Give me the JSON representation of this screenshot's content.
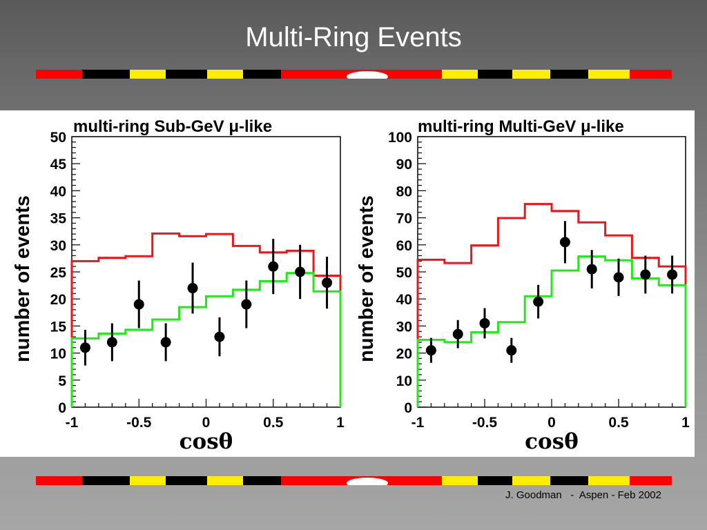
{
  "slide": {
    "title": "Multi-Ring Events",
    "footer": "J. Goodman   -  Aspen - Feb 2002"
  },
  "colors": {
    "red_histogram": "#e8171d",
    "green_histogram": "#22e81a",
    "data_points": "#000000",
    "stripe_red": "#ff0000",
    "stripe_yellow": "#ffee00",
    "stripe_black": "#000000",
    "stripe_white": "#ffffff"
  },
  "chart_data": [
    {
      "type": "line",
      "title": "multi-ring Sub-GeV μ-like",
      "xlabel": "cosθ",
      "ylabel": "number of events",
      "xlim": [
        -1,
        1
      ],
      "ylim": [
        0,
        50
      ],
      "x_ticks": [
        -1,
        -0.5,
        0,
        0.5,
        1
      ],
      "x_tick_labels": [
        "-1",
        "-0.5",
        "0",
        "0.5",
        "1"
      ],
      "y_ticks": [
        0,
        5,
        10,
        15,
        20,
        25,
        30,
        35,
        40,
        45,
        50
      ],
      "y_tick_labels": [
        "0",
        "5",
        "10",
        "15",
        "20",
        "25",
        "30",
        "35",
        "40",
        "45",
        "50"
      ],
      "bin_edges": [
        -1,
        -0.8,
        -0.6,
        -0.4,
        -0.2,
        0,
        0.2,
        0.4,
        0.6,
        0.8,
        1
      ],
      "series": [
        {
          "style": "step",
          "color": "#e8171d",
          "values": [
            27,
            27.6,
            27.9,
            32.1,
            31.6,
            32,
            29.8,
            28.6,
            28.9,
            24.3
          ]
        },
        {
          "style": "step",
          "color": "#22e81a",
          "values": [
            12.7,
            13.6,
            14.3,
            16.2,
            18.5,
            20.5,
            21.7,
            23.3,
            24.8,
            21.4
          ]
        },
        {
          "style": "points",
          "color": "#000000",
          "x": [
            -0.9,
            -0.7,
            -0.5,
            -0.3,
            -0.1,
            0.1,
            0.3,
            0.5,
            0.7,
            0.9
          ],
          "y": [
            11,
            12,
            19,
            12,
            22,
            13,
            19,
            26,
            25,
            23
          ],
          "err": [
            3.3,
            3.5,
            4.4,
            3.5,
            4.7,
            3.6,
            4.4,
            5.1,
            5,
            4.8
          ]
        }
      ]
    },
    {
      "type": "line",
      "title": "multi-ring Multi-GeV μ-like",
      "xlabel": "cosθ",
      "ylabel": "number of events",
      "xlim": [
        -1,
        1
      ],
      "ylim": [
        0,
        100
      ],
      "x_ticks": [
        -1,
        -0.5,
        0,
        0.5,
        1
      ],
      "x_tick_labels": [
        "-1",
        "-0.5",
        "0",
        "0.5",
        "1"
      ],
      "y_ticks": [
        0,
        10,
        20,
        30,
        40,
        50,
        60,
        70,
        80,
        90,
        100
      ],
      "y_tick_labels": [
        "0",
        "10",
        "20",
        "30",
        "40",
        "50",
        "60",
        "70",
        "80",
        "90",
        "100"
      ],
      "bin_edges": [
        -1,
        -0.8,
        -0.6,
        -0.4,
        -0.2,
        0,
        0.2,
        0.4,
        0.6,
        0.8,
        1
      ],
      "series": [
        {
          "style": "step",
          "color": "#e8171d",
          "values": [
            54.5,
            53.3,
            59.8,
            69.9,
            75.1,
            72.5,
            68.3,
            63.5,
            55.2,
            52
          ]
        },
        {
          "style": "step",
          "color": "#22e81a",
          "values": [
            24.9,
            24,
            27.7,
            31.4,
            41,
            50.5,
            55.7,
            54.3,
            47.6,
            45.1
          ]
        },
        {
          "style": "points",
          "color": "#000000",
          "x": [
            -0.9,
            -0.7,
            -0.5,
            -0.3,
            -0.1,
            0.1,
            0.3,
            0.5,
            0.7,
            0.9
          ],
          "y": [
            21,
            27,
            31,
            21,
            39,
            61,
            51,
            48,
            49,
            49
          ],
          "err": [
            4.6,
            5.2,
            5.6,
            4.6,
            6.2,
            7.8,
            7.1,
            6.9,
            7,
            7
          ]
        }
      ]
    }
  ]
}
